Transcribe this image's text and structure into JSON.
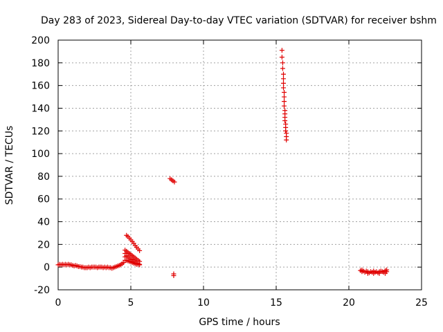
{
  "chart_data": {
    "type": "scatter",
    "title": "Day 283 of 2023, Sidereal Day-to-day VTEC variation (SDTVAR) for receiver bshm",
    "xlabel": "GPS time / hours",
    "ylabel": "SDTVAR / TECUs",
    "xlim": [
      0,
      25
    ],
    "ylim": [
      -20,
      200
    ],
    "xticks": [
      0,
      5,
      10,
      15,
      20,
      25
    ],
    "xtick_labels": [
      "0",
      "5",
      "10",
      "15",
      "20",
      "25"
    ],
    "yticks": [
      -20,
      0,
      20,
      40,
      60,
      80,
      100,
      120,
      140,
      160,
      180,
      200
    ],
    "ytick_labels": [
      "-20",
      "0",
      "20",
      "40",
      "60",
      "80",
      "100",
      "120",
      "140",
      "160",
      "180",
      "200"
    ],
    "grid": true,
    "marker": "plus",
    "color": "#e00000",
    "series": [
      {
        "name": "SDTVAR",
        "points": [
          [
            0.0,
            2.0
          ],
          [
            0.1,
            2.5
          ],
          [
            0.2,
            2.0
          ],
          [
            0.3,
            2.5
          ],
          [
            0.4,
            2.0
          ],
          [
            0.5,
            2.5
          ],
          [
            0.6,
            2.0
          ],
          [
            0.7,
            2.5
          ],
          [
            0.8,
            2.0
          ],
          [
            0.9,
            2.0
          ],
          [
            1.0,
            1.5
          ],
          [
            1.1,
            1.0
          ],
          [
            1.2,
            1.5
          ],
          [
            1.3,
            1.0
          ],
          [
            1.4,
            0.5
          ],
          [
            1.5,
            0.5
          ],
          [
            1.6,
            0.0
          ],
          [
            1.7,
            0.0
          ],
          [
            1.8,
            -0.5
          ],
          [
            1.9,
            -0.5
          ],
          [
            2.0,
            -0.5
          ],
          [
            2.1,
            0.0
          ],
          [
            2.2,
            -0.5
          ],
          [
            2.3,
            0.0
          ],
          [
            2.4,
            0.0
          ],
          [
            2.5,
            0.0
          ],
          [
            2.6,
            0.0
          ],
          [
            2.7,
            -0.5
          ],
          [
            2.8,
            0.0
          ],
          [
            2.9,
            0.0
          ],
          [
            3.0,
            0.0
          ],
          [
            3.1,
            -0.5
          ],
          [
            3.2,
            0.0
          ],
          [
            3.3,
            -0.5
          ],
          [
            3.4,
            0.0
          ],
          [
            3.5,
            -0.5
          ],
          [
            3.6,
            -0.5
          ],
          [
            3.7,
            -1.0
          ],
          [
            3.8,
            -0.5
          ],
          [
            3.9,
            0.0
          ],
          [
            4.0,
            0.5
          ],
          [
            4.1,
            1.0
          ],
          [
            4.2,
            1.5
          ],
          [
            4.3,
            2.0
          ],
          [
            4.4,
            3.0
          ],
          [
            4.5,
            4.0
          ],
          [
            4.6,
            6.0
          ],
          [
            4.6,
            9.0
          ],
          [
            4.6,
            12.0
          ],
          [
            4.6,
            15.0
          ],
          [
            4.7,
            28.0
          ],
          [
            4.8,
            27.0
          ],
          [
            4.9,
            25.5
          ],
          [
            5.0,
            24.0
          ],
          [
            5.1,
            22.5
          ],
          [
            5.2,
            21.0
          ],
          [
            5.3,
            19.0
          ],
          [
            5.4,
            17.5
          ],
          [
            5.5,
            16.0
          ],
          [
            5.6,
            14.5
          ],
          [
            4.7,
            14.0
          ],
          [
            4.8,
            13.0
          ],
          [
            4.9,
            12.0
          ],
          [
            5.0,
            11.0
          ],
          [
            5.1,
            10.0
          ],
          [
            5.2,
            9.0
          ],
          [
            5.3,
            8.0
          ],
          [
            5.4,
            7.0
          ],
          [
            5.5,
            6.0
          ],
          [
            5.6,
            5.0
          ],
          [
            4.7,
            10.0
          ],
          [
            4.8,
            9.0
          ],
          [
            4.9,
            8.0
          ],
          [
            5.0,
            7.0
          ],
          [
            5.1,
            6.5
          ],
          [
            5.2,
            5.5
          ],
          [
            5.3,
            4.5
          ],
          [
            5.4,
            3.5
          ],
          [
            5.5,
            3.0
          ],
          [
            5.6,
            2.5
          ],
          [
            4.7,
            6.0
          ],
          [
            4.8,
            5.5
          ],
          [
            4.9,
            5.0
          ],
          [
            5.0,
            4.5
          ],
          [
            5.1,
            4.0
          ],
          [
            5.2,
            3.5
          ],
          [
            5.3,
            3.0
          ],
          [
            5.4,
            2.5
          ],
          [
            5.5,
            2.5
          ],
          [
            5.6,
            2.0
          ],
          [
            7.7,
            78.0
          ],
          [
            7.8,
            77.0
          ],
          [
            7.9,
            76.0
          ],
          [
            8.0,
            75.0
          ],
          [
            7.95,
            -6.0
          ],
          [
            7.95,
            -7.5
          ],
          [
            15.4,
            191.0
          ],
          [
            15.4,
            185.0
          ],
          [
            15.45,
            180.0
          ],
          [
            15.45,
            175.0
          ],
          [
            15.5,
            170.0
          ],
          [
            15.5,
            166.0
          ],
          [
            15.5,
            162.0
          ],
          [
            15.5,
            158.0
          ],
          [
            15.55,
            154.0
          ],
          [
            15.55,
            150.0
          ],
          [
            15.55,
            146.0
          ],
          [
            15.55,
            142.0
          ],
          [
            15.6,
            138.0
          ],
          [
            15.6,
            135.0
          ],
          [
            15.6,
            132.0
          ],
          [
            15.6,
            129.0
          ],
          [
            15.65,
            126.0
          ],
          [
            15.65,
            123.0
          ],
          [
            15.65,
            120.0
          ],
          [
            15.7,
            118.0
          ],
          [
            15.7,
            115.0
          ],
          [
            15.7,
            112.0
          ],
          [
            20.8,
            -3.0
          ],
          [
            20.9,
            -4.0
          ],
          [
            21.0,
            -3.5
          ],
          [
            21.1,
            -4.5
          ],
          [
            21.2,
            -3.5
          ],
          [
            21.3,
            -4.0
          ],
          [
            21.4,
            -5.0
          ],
          [
            21.5,
            -4.0
          ],
          [
            21.6,
            -4.5
          ],
          [
            21.7,
            -3.5
          ],
          [
            21.8,
            -4.5
          ],
          [
            21.9,
            -4.0
          ],
          [
            22.0,
            -5.0
          ],
          [
            22.1,
            -4.0
          ],
          [
            22.2,
            -3.5
          ],
          [
            22.3,
            -4.0
          ],
          [
            22.4,
            -4.5
          ],
          [
            22.5,
            -3.0
          ],
          [
            22.6,
            -4.0
          ],
          [
            20.9,
            -2.5
          ],
          [
            21.3,
            -5.5
          ],
          [
            21.7,
            -5.5
          ],
          [
            22.1,
            -5.5
          ],
          [
            22.5,
            -5.5
          ],
          [
            22.6,
            -2.5
          ]
        ]
      }
    ]
  }
}
